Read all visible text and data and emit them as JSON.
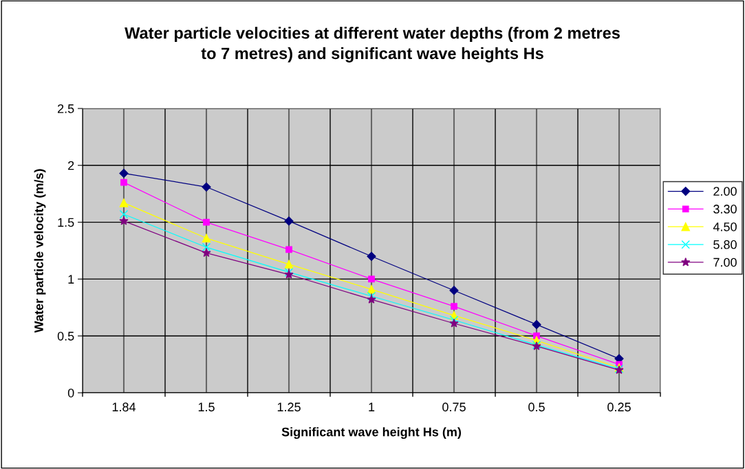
{
  "chart_data": {
    "type": "line",
    "title": "Water particle velocities at different water depths (from 2 metres\nto 7 metres) and significant wave heights Hs",
    "xlabel": "Significant wave height Hs (m)",
    "ylabel": "Water particle velocity (m/s)",
    "categories": [
      "1.84",
      "1.5",
      "1.25",
      "1",
      "0.75",
      "0.5",
      "0.25"
    ],
    "ylim": [
      0,
      2.5
    ],
    "yticks": [
      0,
      0.5,
      1,
      1.5,
      2,
      2.5
    ],
    "grid": true,
    "legend": "right",
    "series": [
      {
        "name": "2.00",
        "color": "#000080",
        "marker": "diamond",
        "values": [
          1.93,
          1.81,
          1.51,
          1.2,
          0.9,
          0.6,
          0.3
        ]
      },
      {
        "name": "3.30",
        "color": "#ff00ff",
        "marker": "square",
        "values": [
          1.85,
          1.5,
          1.26,
          1.0,
          0.76,
          0.5,
          0.25
        ]
      },
      {
        "name": "4.50",
        "color": "#ffff00",
        "marker": "triangle",
        "values": [
          1.67,
          1.36,
          1.13,
          0.91,
          0.68,
          0.46,
          0.22
        ]
      },
      {
        "name": "5.80",
        "color": "#00ffff",
        "marker": "cross",
        "values": [
          1.57,
          1.28,
          1.06,
          0.85,
          0.64,
          0.42,
          0.21
        ]
      },
      {
        "name": "7.00",
        "color": "#800080",
        "marker": "star",
        "values": [
          1.51,
          1.23,
          1.04,
          0.82,
          0.61,
          0.41,
          0.2
        ]
      }
    ]
  }
}
